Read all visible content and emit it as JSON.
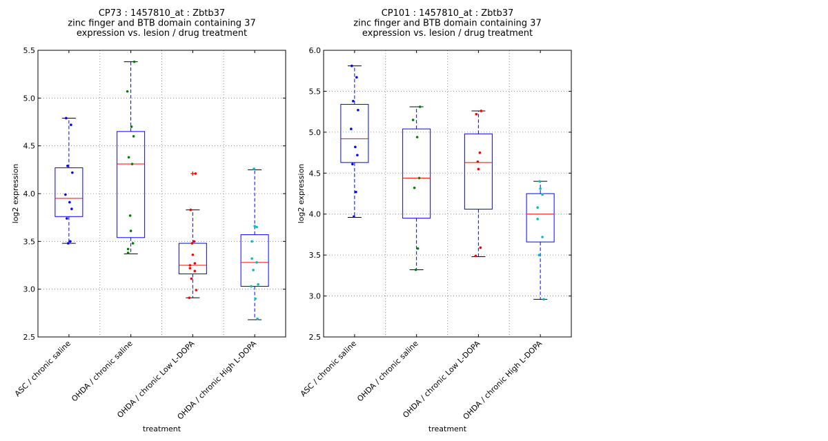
{
  "colors": {
    "box": "#0000ff",
    "median": "#ff0000",
    "whisker": "#0000aa",
    "grid": "#777777",
    "group_points": [
      "#0000ff",
      "#007f00",
      "#ff0000",
      "#00bfbf"
    ]
  },
  "chart_data": [
    {
      "type": "box",
      "title_lines": [
        "CP73 : 1457810_at : Zbtb37",
        "zinc finger and BTB domain containing 37",
        "expression vs. lesion / drug treatment"
      ],
      "xlabel": "treatment",
      "ylabel": "log2 expression",
      "ylim": [
        2.5,
        5.5
      ],
      "yticks": [
        "2.5",
        "3.0",
        "3.5",
        "4.0",
        "4.5",
        "5.0",
        "5.5"
      ],
      "grid": true,
      "categories": [
        "ASC / chronic saline",
        "OHDA / chronic saline",
        "OHDA / chronic Low L-DOPA",
        "OHDA / chronic High L-DOPA"
      ],
      "boxes": [
        {
          "whisker_low": 3.48,
          "q1": 3.76,
          "median": 3.95,
          "q3": 4.27,
          "whisker_high": 4.79,
          "outliers": []
        },
        {
          "whisker_low": 3.37,
          "q1": 3.54,
          "median": 4.31,
          "q3": 4.65,
          "whisker_high": 5.38,
          "outliers": []
        },
        {
          "whisker_low": 2.91,
          "q1": 3.16,
          "median": 3.25,
          "q3": 3.48,
          "whisker_high": 3.83,
          "outliers": [
            4.21
          ]
        },
        {
          "whisker_low": 2.68,
          "q1": 3.03,
          "median": 3.28,
          "q3": 3.57,
          "whisker_high": 4.25,
          "outliers": []
        }
      ],
      "points": [
        [
          4.79,
          4.72,
          4.29,
          4.22,
          3.99,
          3.91,
          3.84,
          3.74,
          3.5,
          3.48
        ],
        [
          5.38,
          5.07,
          4.7,
          4.6,
          4.38,
          4.31,
          3.77,
          3.61,
          3.48,
          3.42,
          3.38
        ],
        [
          4.21,
          3.83,
          3.5,
          3.48,
          3.36,
          3.27,
          3.25,
          3.22,
          3.19,
          3.11,
          2.99,
          2.91
        ],
        [
          4.26,
          3.66,
          3.65,
          3.5,
          3.32,
          3.28,
          3.2,
          3.05,
          3.03,
          2.9,
          2.69
        ]
      ]
    },
    {
      "type": "box",
      "title_lines": [
        "CP101 : 1457810_at : Zbtb37",
        "zinc finger and BTB domain containing 37",
        "expression vs. lesion / drug treatment"
      ],
      "xlabel": "treatment",
      "ylabel": "log2 expression",
      "ylim": [
        2.5,
        6.0
      ],
      "yticks": [
        "2.5",
        "3.0",
        "3.5",
        "4.0",
        "4.5",
        "5.0",
        "5.5",
        "6.0"
      ],
      "grid": true,
      "categories": [
        "ASC / chronic saline",
        "OHDA / chronic saline",
        "OHDA / chronic Low L-DOPA",
        "OHDA / chronic High L-DOPA"
      ],
      "boxes": [
        {
          "whisker_low": 3.96,
          "q1": 4.63,
          "median": 4.92,
          "q3": 5.34,
          "whisker_high": 5.81,
          "outliers": []
        },
        {
          "whisker_low": 3.32,
          "q1": 3.95,
          "median": 4.44,
          "q3": 5.04,
          "whisker_high": 5.31,
          "outliers": []
        },
        {
          "whisker_low": 3.48,
          "q1": 4.06,
          "median": 4.63,
          "q3": 4.98,
          "whisker_high": 5.26,
          "outliers": []
        },
        {
          "whisker_low": 2.96,
          "q1": 3.66,
          "median": 4.0,
          "q3": 4.25,
          "whisker_high": 4.4,
          "outliers": []
        }
      ],
      "points": [
        [
          5.81,
          5.67,
          5.38,
          5.27,
          5.04,
          4.82,
          4.72,
          4.61,
          4.27,
          3.97
        ],
        [
          5.31,
          5.15,
          4.94,
          4.44,
          4.32,
          3.58,
          3.32
        ],
        [
          5.26,
          5.22,
          4.75,
          4.64,
          4.55,
          3.59,
          3.49
        ],
        [
          4.4,
          4.31,
          4.24,
          4.08,
          3.94,
          3.72,
          3.5,
          2.96
        ]
      ]
    }
  ]
}
